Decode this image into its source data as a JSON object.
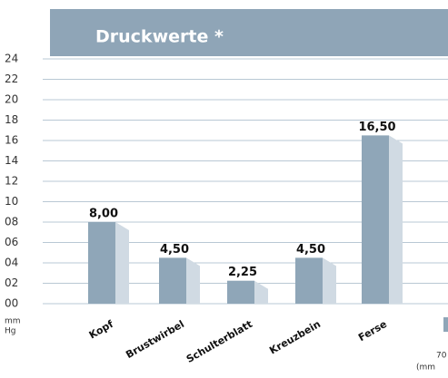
{
  "chart_data": {
    "type": "bar",
    "title": "Druckwerte *",
    "categories": [
      "Kopf",
      "Brustwirbel",
      "Schulterblatt",
      "Kreuzbein",
      "Ferse"
    ],
    "values": [
      8,
      4.5,
      2.25,
      4.5,
      16.5
    ],
    "value_labels": [
      "8,00",
      "4,50",
      "2,25",
      "4,50",
      "16,50"
    ],
    "color": "#8fa6b8",
    "side_color": "#d0dae3",
    "header_color": "#8fa5b7",
    "ylim": [
      0,
      24
    ],
    "yticks": [
      {
        "value": 0,
        "label": "00"
      },
      {
        "value": 2,
        "label": "02"
      },
      {
        "value": 4,
        "label": "04"
      },
      {
        "value": 6,
        "label": "06"
      },
      {
        "value": 8,
        "label": "08"
      },
      10,
      12,
      14,
      16,
      18,
      20,
      22,
      24
    ],
    "y_unit": [
      "mm",
      "Hg"
    ],
    "legend_fragment": [
      "70",
      "(mm"
    ],
    "grid": true
  }
}
